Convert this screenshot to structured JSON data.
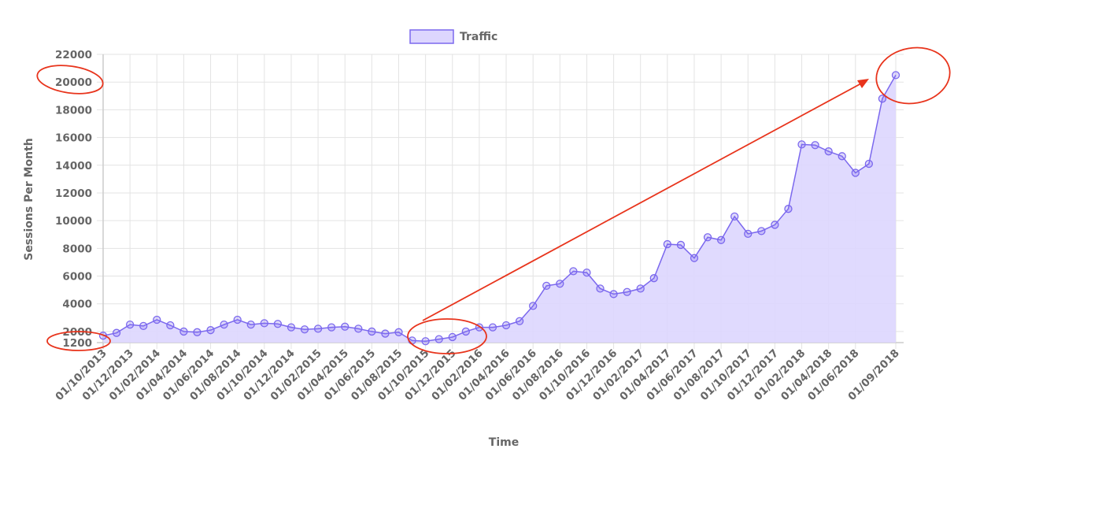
{
  "chart_data": {
    "type": "area",
    "title": "",
    "xlabel": "Time",
    "ylabel": "Sessions Per Month",
    "ylim": [
      1200,
      22000
    ],
    "y_ticks": [
      1200,
      2000,
      4000,
      6000,
      8000,
      10000,
      12000,
      14000,
      16000,
      18000,
      20000,
      22000
    ],
    "x_tick_labels": [
      "01/10/2013",
      "01/12/2013",
      "01/02/2014",
      "01/04/2014",
      "01/06/2014",
      "01/08/2014",
      "01/10/2014",
      "01/12/2014",
      "01/02/2015",
      "01/04/2015",
      "01/06/2015",
      "01/08/2015",
      "01/10/2015",
      "01/12/2015",
      "01/02/2016",
      "01/04/2016",
      "01/06/2016",
      "01/08/2016",
      "01/10/2016",
      "01/12/2016",
      "01/02/2017",
      "01/04/2017",
      "01/06/2017",
      "01/08/2017",
      "01/10/2017",
      "01/12/2017",
      "01/02/2018",
      "01/04/2018",
      "01/06/2018",
      "01/09/2018"
    ],
    "grid": true,
    "legend_position": "top",
    "series": [
      {
        "name": "Traffic",
        "line_color": "#7b68ee",
        "fill_color": "#ddd6fe",
        "x": [
          "10/2013",
          "11/2013",
          "12/2013",
          "01/2014",
          "02/2014",
          "03/2014",
          "04/2014",
          "05/2014",
          "06/2014",
          "07/2014",
          "08/2014",
          "09/2014",
          "10/2014",
          "11/2014",
          "12/2014",
          "01/2015",
          "02/2015",
          "03/2015",
          "04/2015",
          "05/2015",
          "06/2015",
          "07/2015",
          "08/2015",
          "09/2015",
          "10/2015",
          "11/2015",
          "12/2015",
          "01/2016",
          "02/2016",
          "03/2016",
          "04/2016",
          "05/2016",
          "06/2016",
          "07/2016",
          "08/2016",
          "09/2016",
          "10/2016",
          "11/2016",
          "12/2016",
          "01/2017",
          "02/2017",
          "03/2017",
          "04/2017",
          "05/2017",
          "06/2017",
          "07/2017",
          "08/2017",
          "09/2017",
          "10/2017",
          "11/2017",
          "12/2017",
          "01/2018",
          "02/2018",
          "03/2018",
          "04/2018",
          "05/2018",
          "06/2018",
          "07/2018",
          "08/2018",
          "09/2018"
        ],
        "values": [
          1700,
          1900,
          2500,
          2400,
          2850,
          2450,
          2000,
          1950,
          2100,
          2500,
          2850,
          2500,
          2600,
          2550,
          2300,
          2150,
          2200,
          2300,
          2350,
          2200,
          2000,
          1850,
          1950,
          1350,
          1300,
          1450,
          1600,
          2000,
          2300,
          2300,
          2450,
          2750,
          3850,
          5300,
          5450,
          6350,
          6250,
          5100,
          4700,
          4850,
          5100,
          5850,
          8300,
          8250,
          7300,
          8800,
          8600,
          10300,
          9050,
          9250,
          9700,
          10850,
          15500,
          15450,
          15000,
          14650,
          13450,
          14100,
          18800,
          20500
        ]
      }
    ],
    "annotations": [
      {
        "type": "ellipse",
        "color": "#e8341c",
        "target": "y-tick 20000"
      },
      {
        "type": "ellipse",
        "color": "#e8341c",
        "target": "y-tick 1200"
      },
      {
        "type": "ellipse",
        "color": "#e8341c",
        "target": "low point around 10/2015-12/2015"
      },
      {
        "type": "ellipse",
        "color": "#e8341c",
        "target": "peak at 09/2018"
      },
      {
        "type": "arrow",
        "color": "#e8341c",
        "from": "10/2015 low",
        "to": "09/2018 peak"
      }
    ]
  },
  "legend": {
    "label": "Traffic"
  },
  "axes": {
    "x_title": "Time",
    "y_title": "Sessions Per Month"
  },
  "colors": {
    "line": "#7b68ee",
    "fill": "#ddd6fe",
    "grid": "#e3e3e3",
    "text": "#666666",
    "annotation": "#e8341c"
  }
}
